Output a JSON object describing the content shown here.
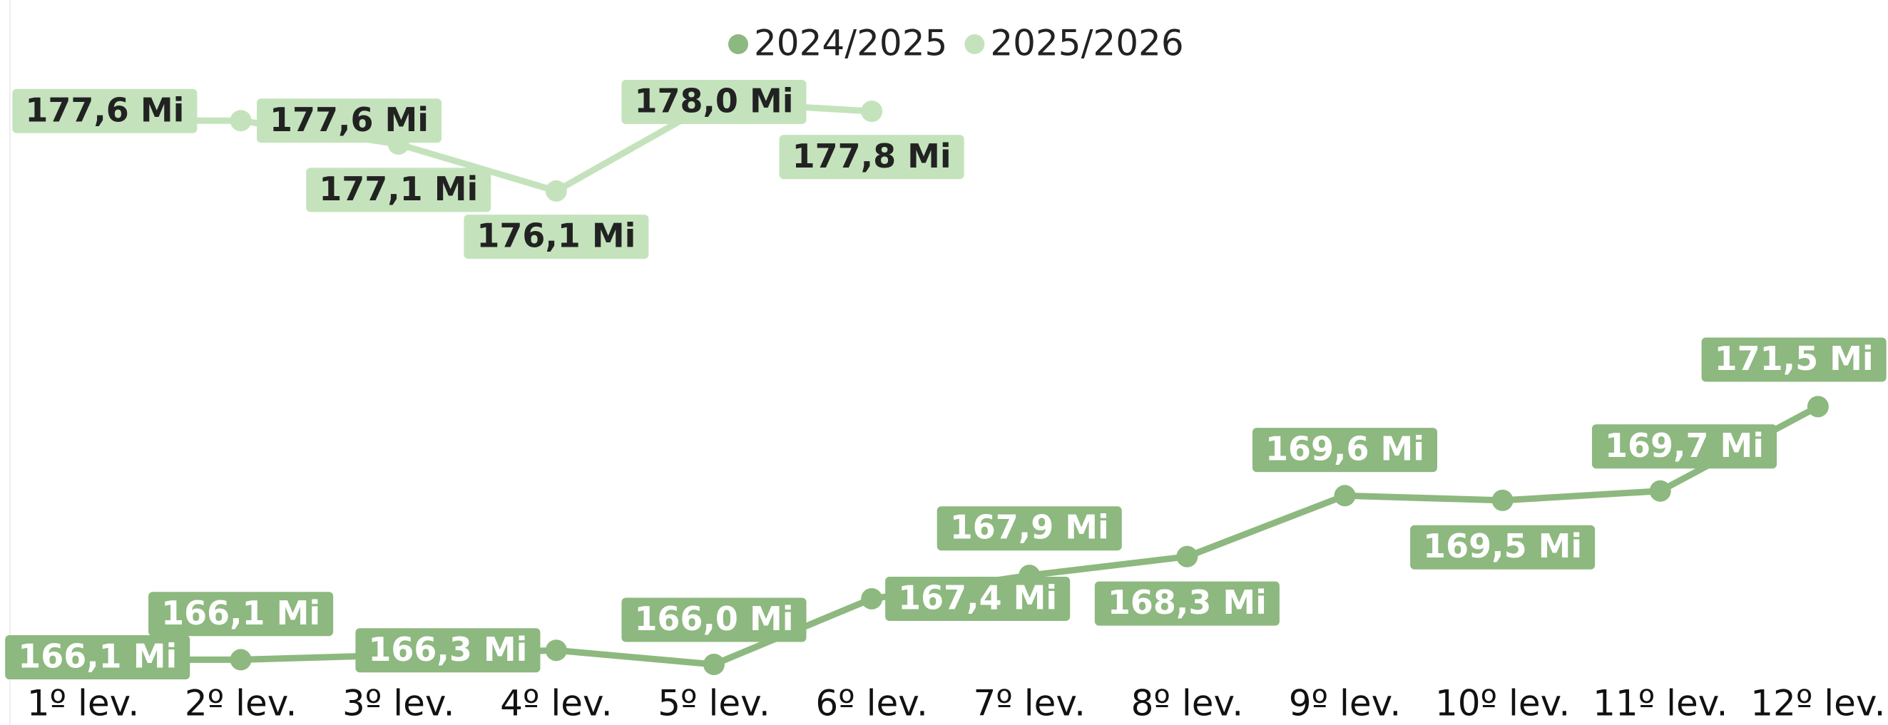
{
  "chart_data": {
    "type": "line",
    "categories": [
      "1º lev.",
      "2º lev.",
      "3º lev.",
      "4º lev.",
      "5º lev.",
      "6º lev.",
      "7º lev.",
      "8º lev.",
      "9º lev.",
      "10º lev.",
      "11º lev.",
      "12º lev."
    ],
    "series": [
      {
        "name": "2024/2025",
        "color": "#8db87f",
        "label_text_color": "#ffffff",
        "values": [
          166.1,
          166.1,
          166.2,
          166.3,
          166.0,
          167.4,
          167.9,
          168.3,
          169.6,
          169.5,
          169.7,
          171.5
        ],
        "value_labels": [
          "166,1 Mi",
          "166,1 Mi",
          null,
          "166,3 Mi",
          "166,0 Mi",
          "167,4 Mi",
          "167,9 Mi",
          "168,3 Mi",
          "169,6 Mi",
          "169,5 Mi",
          "169,7 Mi",
          "171,5 Mi"
        ]
      },
      {
        "name": "2025/2026",
        "color": "#c4e3bc",
        "label_text_color": "#222222",
        "values": [
          177.6,
          177.6,
          177.1,
          176.1,
          178.0,
          177.8,
          null,
          null,
          null,
          null,
          null,
          null
        ],
        "value_labels": [
          "177,6 Mi",
          "177,6 Mi",
          "177,1 Mi",
          "176,1 Mi",
          "178,0 Mi",
          "177,8 Mi",
          null,
          null,
          null,
          null,
          null,
          null
        ]
      }
    ],
    "legend": "top"
  }
}
